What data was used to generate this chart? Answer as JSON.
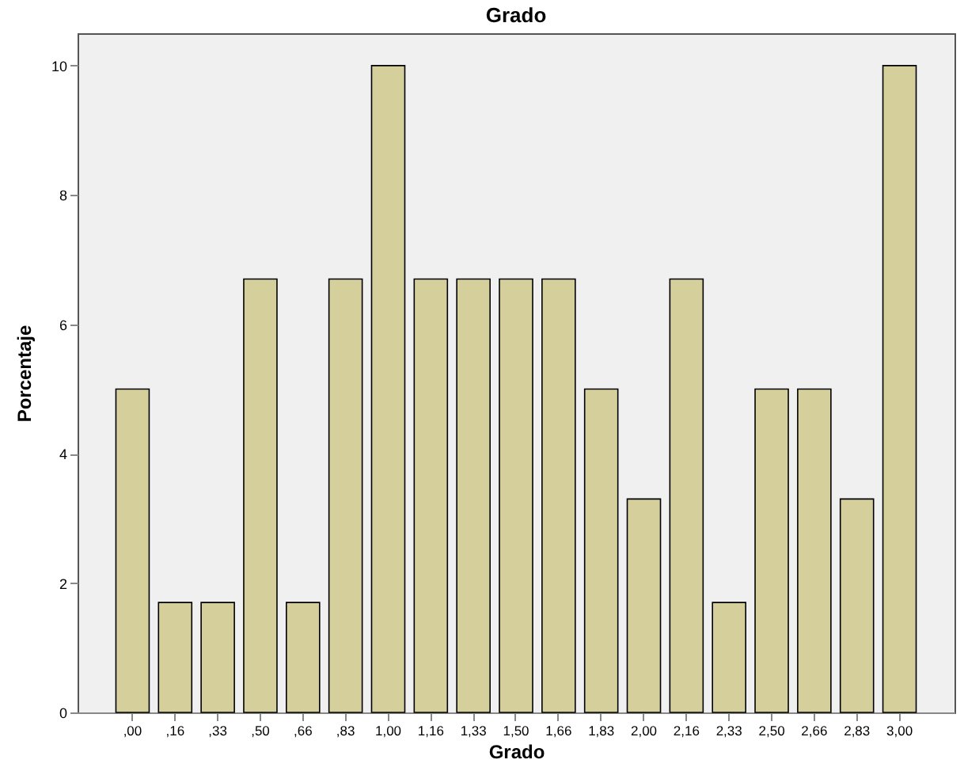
{
  "chart_data": {
    "type": "bar",
    "title": "Grado",
    "xlabel": "Grado",
    "ylabel": "Porcentaje",
    "categories": [
      ",00",
      ",16",
      ",33",
      ",50",
      ",66",
      ",83",
      "1,00",
      "1,16",
      "1,33",
      "1,50",
      "1,66",
      "1,83",
      "2,00",
      "2,16",
      "2,33",
      "2,50",
      "2,66",
      "2,83",
      "3,00"
    ],
    "values": [
      5,
      1.7,
      1.7,
      6.7,
      1.7,
      6.7,
      10,
      6.7,
      6.7,
      6.7,
      6.7,
      5,
      3.3,
      6.7,
      1.7,
      5,
      5,
      3.3,
      10
    ],
    "color": "#d4cf9b",
    "ylim": [
      0,
      10.5
    ],
    "yticks": [
      0,
      2,
      4,
      6,
      8,
      10
    ],
    "grid": false
  }
}
